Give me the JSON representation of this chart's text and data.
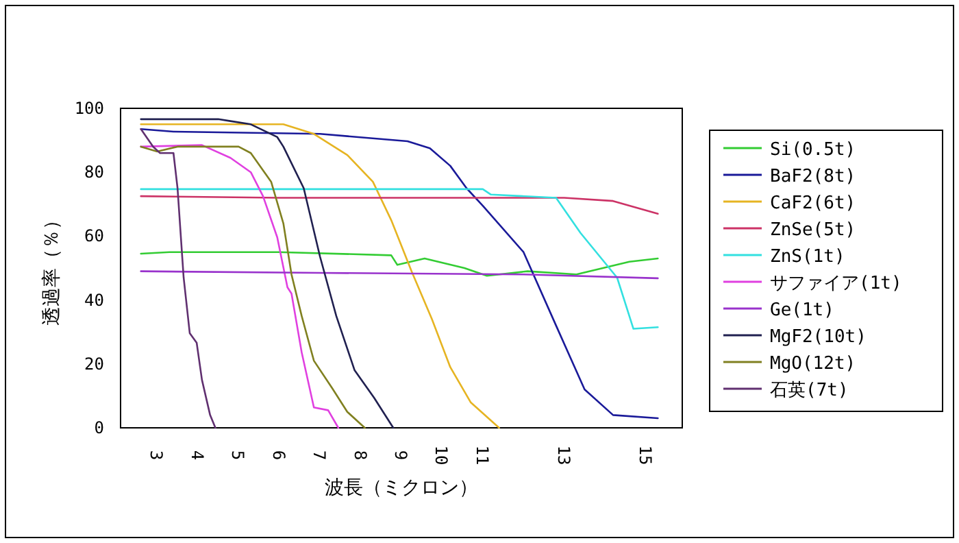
{
  "chart_data": {
    "type": "line",
    "xlabel": "波長（ミクロン）",
    "ylabel": "透過率（％）",
    "xlim": [
      2.1,
      15.9
    ],
    "xticks": [
      3,
      4,
      5,
      6,
      7,
      8,
      9,
      10,
      11,
      13,
      15
    ],
    "ylim": [
      0,
      100
    ],
    "yticks": [
      0,
      20,
      40,
      60,
      80,
      100
    ],
    "grid": false,
    "legend": "right",
    "marker": "none",
    "line_style": "solid",
    "series": [
      {
        "name": "Si(0.5t)",
        "color": "#33cc33",
        "x": [
          2.6,
          3.3,
          6,
          8.75,
          8.9,
          9.57,
          10.55,
          11.1,
          12.1,
          13.3,
          14.6,
          15.3
        ],
        "values": [
          54.5,
          55,
          55,
          54,
          51,
          53,
          50,
          47.6,
          49,
          48,
          52,
          53
        ]
      },
      {
        "name": "BaF2(8t)",
        "color": "#1a1a99",
        "x": [
          2.6,
          3.4,
          7,
          9.15,
          9.7,
          10.2,
          10.6,
          11,
          12,
          12.8,
          13.5,
          14.2,
          15.3
        ],
        "values": [
          93.5,
          92.7,
          92,
          89.7,
          87.5,
          82,
          75,
          69.5,
          55,
          32,
          12,
          4,
          3
        ]
      },
      {
        "name": "CaF2(6t)",
        "color": "#e6b422",
        "x": [
          2.6,
          6.1,
          6.85,
          7.67,
          8.3,
          8.75,
          9.25,
          9.75,
          10.2,
          10.7,
          11.4
        ],
        "values": [
          95,
          95,
          92,
          85.4,
          77,
          65,
          49,
          34,
          19,
          8,
          0
        ]
      },
      {
        "name": "ZnSe(5t)",
        "color": "#cc3366",
        "x": [
          2.6,
          6,
          13,
          14.2,
          15.3
        ],
        "values": [
          72.5,
          72,
          72,
          71,
          67
        ]
      },
      {
        "name": "ZnS(1t)",
        "color": "#33e0e0",
        "x": [
          2.6,
          11,
          11.2,
          12.8,
          13.4,
          14.3,
          14.7,
          15.3
        ],
        "values": [
          74.7,
          74.7,
          73,
          72,
          61,
          47,
          31,
          31.5
        ]
      },
      {
        "name": "サファイア(1t)",
        "color": "#e040e0",
        "x": [
          2.6,
          4.1,
          4.8,
          5.3,
          5.6,
          5.95,
          6.2,
          6.3,
          6.55,
          6.85,
          7.2,
          7.45
        ],
        "values": [
          88,
          88.5,
          84.5,
          80,
          72.5,
          59.6,
          44,
          42,
          23.6,
          6.4,
          5.5,
          0
        ]
      },
      {
        "name": "Ge(1t)",
        "color": "#9933cc",
        "x": [
          2.6,
          7,
          12,
          15.3
        ],
        "values": [
          49,
          48.5,
          48,
          46.8
        ]
      },
      {
        "name": "MgF2(10t)",
        "color": "#202050",
        "x": [
          2.6,
          4.5,
          4.8,
          5.3,
          5.95,
          6.1,
          6.6,
          7,
          7.4,
          7.85,
          8.33,
          8.8
        ],
        "values": [
          96.6,
          96.6,
          96,
          95,
          91,
          88,
          75,
          53.6,
          35,
          18,
          9.4,
          0
        ]
      },
      {
        "name": "MgO(12t)",
        "color": "#808020",
        "x": [
          2.6,
          3,
          3.5,
          5,
          5.3,
          5.8,
          6.1,
          6.3,
          6.55,
          6.85,
          7.3,
          7.67,
          8.1
        ],
        "values": [
          88,
          86.5,
          88,
          88,
          86,
          77,
          64,
          48,
          35,
          21,
          12.4,
          5,
          0
        ]
      },
      {
        "name": "石英(7t)",
        "color": "#603070",
        "x": [
          2.6,
          2.9,
          3.07,
          3.4,
          3.5,
          3.65,
          3.8,
          3.97,
          4.1,
          4.3,
          4.43
        ],
        "values": [
          93.5,
          88,
          86,
          86,
          75,
          47,
          29.6,
          26.6,
          15,
          4,
          0
        ]
      }
    ]
  }
}
